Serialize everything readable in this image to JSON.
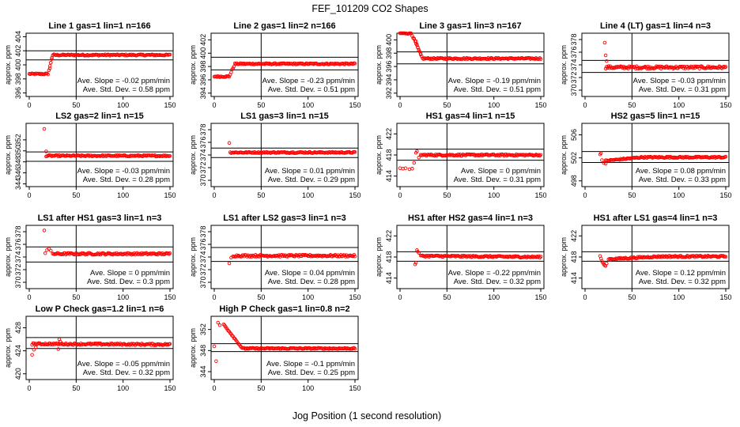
{
  "title": "FEF_101209  CO2 Shapes",
  "xlabel": "Jog Position (1 second resolution)",
  "chart_data": [
    {
      "type": "scatter",
      "title": "Line 1 gas=1 lin=1 n=166",
      "ylabel": "approx. ppm",
      "xlim": [
        0,
        150
      ],
      "ylim": [
        395.5,
        404.5
      ],
      "yticks": [
        396,
        398,
        400,
        402,
        404
      ],
      "xticks": [
        0,
        50,
        100,
        150
      ],
      "hlines": [
        400.7,
        402.0
      ],
      "vline": 50,
      "slope_text": "Ave. Slope = -0.02  ppm/min",
      "sd_text": "Ave. Std. Dev. = 0.58  ppm",
      "shape": {
        "kind": "rise",
        "x0": 0,
        "x1": 150,
        "y_start": 398.7,
        "y_end": 401.4,
        "t0": 20,
        "t1": 25,
        "noise": 0.1,
        "ramp_pts": [
          [
            22,
            399.5
          ],
          [
            23,
            400.3
          ],
          [
            24,
            401.0
          ]
        ]
      }
    },
    {
      "type": "scatter",
      "title": "Line 2 gas=1 lin=2 n=166",
      "ylabel": "approx. ppm",
      "xlim": [
        0,
        150
      ],
      "ylim": [
        393.5,
        403
      ],
      "yticks": [
        394,
        396,
        398,
        400,
        402
      ],
      "xticks": [
        0,
        50,
        100,
        150
      ],
      "hlines": [
        397.5,
        399.4
      ],
      "vline": 50,
      "slope_text": "Ave. Slope = -0.23  ppm/min",
      "sd_text": "Ave. Std. Dev. = 0.51  ppm",
      "shape": {
        "kind": "rise",
        "x0": 0,
        "x1": 150,
        "y_start": 396.5,
        "y_end": 398.4,
        "t0": 16,
        "t1": 22,
        "noise": 0.1,
        "ramp_pts": []
      }
    },
    {
      "type": "scatter",
      "title": "Line 3 gas=1 lin=3 n=167",
      "ylabel": "approx. ppm",
      "xlim": [
        0,
        150
      ],
      "ylim": [
        391.5,
        401
      ],
      "yticks": [
        392,
        394,
        396,
        398,
        400
      ],
      "xticks": [
        0,
        50,
        100,
        150
      ],
      "hlines": [
        396.4,
        398.2
      ],
      "vline": 50,
      "slope_text": "Ave. Slope = -0.19  ppm/min",
      "sd_text": "Ave. Std. Dev. = 0.51  ppm",
      "shape": {
        "kind": "fall",
        "x0": 0,
        "x1": 150,
        "y_start": 401.0,
        "y_end": 397.2,
        "t0": 12,
        "t1": 24,
        "noise": 0.1,
        "ramp_pts": [
          [
            15,
            400.2
          ],
          [
            17,
            399.8
          ],
          [
            18,
            399.3
          ],
          [
            19,
            398.9
          ],
          [
            20,
            398.4
          ],
          [
            22,
            397.8
          ]
        ]
      }
    },
    {
      "type": "scatter",
      "title": "Line 4 (LT) gas=1 lin=4 n=3",
      "ylabel": "approx. ppm",
      "xlim": [
        0,
        150
      ],
      "ylim": [
        369,
        379
      ],
      "yticks": [
        370,
        372,
        374,
        376,
        378
      ],
      "xticks": [
        0,
        50,
        100,
        150
      ],
      "hlines": [
        372.8,
        374.7
      ],
      "vline": 50,
      "slope_text": "Ave. Slope = -0.03  ppm/min",
      "sd_text": "Ave. Std. Dev. = 0.31  ppm",
      "shape": {
        "kind": "flat",
        "x0": 22,
        "x1": 150,
        "y_start": 373.6,
        "y_end": 373.6,
        "t0": 0,
        "t1": 0,
        "noise": 0.2,
        "ramp_pts": [
          [
            21,
            377.5
          ],
          [
            22,
            375.5
          ],
          [
            23,
            374.6
          ],
          [
            25,
            373.8
          ]
        ]
      }
    },
    {
      "type": "scatter",
      "title": "LS2 gas=2 lin=1 n=15",
      "ylabel": "approx. ppm",
      "xlim": [
        0,
        150
      ],
      "ylim": [
        343.5,
        355
      ],
      "yticks": [
        344,
        346,
        348,
        350,
        352
      ],
      "xticks": [
        0,
        50,
        100,
        150
      ],
      "hlines": [
        348.1,
        349.8
      ],
      "vline": 50,
      "slope_text": "Ave. Slope = -0.03  ppm/min",
      "sd_text": "Ave. Std. Dev. = 0.28  ppm",
      "shape": {
        "kind": "flat",
        "x0": 18,
        "x1": 150,
        "y_start": 349.1,
        "y_end": 349.1,
        "t0": 0,
        "t1": 0,
        "noise": 0.12,
        "ramp_pts": [
          [
            16,
            354.0
          ],
          [
            18,
            349.9
          ]
        ]
      }
    },
    {
      "type": "scatter",
      "title": "LS1 gas=3 lin=1 n=15",
      "ylabel": "approx. ppm",
      "xlim": [
        0,
        150
      ],
      "ylim": [
        369,
        379
      ],
      "yticks": [
        370,
        372,
        374,
        376,
        378
      ],
      "xticks": [
        0,
        50,
        100,
        150
      ],
      "hlines": [
        373.6,
        375.1
      ],
      "vline": 50,
      "slope_text": "Ave. Slope = 0.01  ppm/min",
      "sd_text": "Ave. Std. Dev. = 0.29  ppm",
      "shape": {
        "kind": "flat",
        "x0": 17,
        "x1": 150,
        "y_start": 374.4,
        "y_end": 374.4,
        "t0": 0,
        "t1": 0,
        "noise": 0.1,
        "ramp_pts": [
          [
            16,
            375.9
          ]
        ]
      }
    },
    {
      "type": "scatter",
      "title": "HS1 gas=4 lin=1 n=15",
      "ylabel": "approx. ppm",
      "xlim": [
        0,
        150
      ],
      "ylim": [
        412,
        424
      ],
      "yticks": [
        414,
        418,
        422
      ],
      "xticks": [
        0,
        50,
        100,
        150
      ],
      "hlines": [
        417.0,
        419.1
      ],
      "vline": 50,
      "slope_text": "Ave. Slope = 0  ppm/min",
      "sd_text": "Ave. Std. Dev. = 0.31  ppm",
      "shape": {
        "kind": "flat",
        "x0": 22,
        "x1": 150,
        "y_start": 418.0,
        "y_end": 418.0,
        "t0": 0,
        "t1": 0,
        "noise": 0.15,
        "ramp_pts": [
          [
            0,
            415.5
          ],
          [
            3,
            415.4
          ],
          [
            6,
            415.5
          ],
          [
            10,
            415.3
          ],
          [
            13,
            415.4
          ],
          [
            15,
            416.5
          ],
          [
            17,
            418.4
          ],
          [
            18,
            418.7
          ],
          [
            20,
            417.5
          ]
        ]
      }
    },
    {
      "type": "scatter",
      "title": "HS2 gas=5 lin=1 n=15",
      "ylabel": "approx. ppm",
      "xlim": [
        0,
        150
      ],
      "ylim": [
        497,
        508
      ],
      "yticks": [
        498,
        502,
        506
      ],
      "xticks": [
        0,
        50,
        100,
        150
      ],
      "hlines": [
        501.2,
        503.1
      ],
      "vline": 50,
      "slope_text": "Ave. Slope = 0.08  ppm/min",
      "sd_text": "Ave. Std. Dev. = 0.33  ppm",
      "shape": {
        "kind": "rise",
        "x0": 22,
        "x1": 150,
        "y_start": 501.5,
        "y_end": 502.1,
        "t0": 22,
        "t1": 60,
        "noise": 0.12,
        "ramp_pts": [
          [
            16,
            502.6
          ],
          [
            17,
            502.8
          ],
          [
            18,
            501.6
          ],
          [
            20,
            501.1
          ],
          [
            22,
            501.0
          ]
        ]
      }
    },
    {
      "type": "scatter",
      "title": "LS1 after HS1 gas=3 lin=1 n=3",
      "ylabel": "approx. ppm",
      "xlim": [
        0,
        150
      ],
      "ylim": [
        369,
        379
      ],
      "yticks": [
        370,
        372,
        374,
        376,
        378
      ],
      "xticks": [
        0,
        50,
        100,
        150
      ],
      "hlines": [
        373.2,
        375.6
      ],
      "vline": 50,
      "slope_text": "Ave. Slope = 0  ppm/min",
      "sd_text": "Ave. Std. Dev. = 0.3  ppm",
      "shape": {
        "kind": "flat",
        "x0": 25,
        "x1": 150,
        "y_start": 374.5,
        "y_end": 374.5,
        "t0": 0,
        "t1": 0,
        "noise": 0.15,
        "ramp_pts": [
          [
            16,
            378.2
          ],
          [
            17,
            374.6
          ],
          [
            19,
            375.1
          ],
          [
            21,
            375.3
          ],
          [
            23,
            375.0
          ]
        ]
      }
    },
    {
      "type": "scatter",
      "title": "LS1 after LS2 gas=3 lin=1 n=3",
      "ylabel": "approx. ppm",
      "xlim": [
        0,
        150
      ],
      "ylim": [
        369,
        379
      ],
      "yticks": [
        370,
        372,
        374,
        376,
        378
      ],
      "xticks": [
        0,
        50,
        100,
        150
      ],
      "hlines": [
        373.3,
        375.5
      ],
      "vline": 50,
      "slope_text": "Ave. Slope = 0.04  ppm/min",
      "sd_text": "Ave. Std. Dev. = 0.28  ppm",
      "shape": {
        "kind": "flat",
        "x0": 20,
        "x1": 150,
        "y_start": 374.2,
        "y_end": 374.2,
        "t0": 0,
        "t1": 0,
        "noise": 0.15,
        "ramp_pts": [
          [
            16,
            373.0
          ],
          [
            18,
            373.9
          ]
        ]
      }
    },
    {
      "type": "scatter",
      "title": "HS1 after HS2 gas=4 lin=1 n=3",
      "ylabel": "approx. ppm",
      "xlim": [
        0,
        150
      ],
      "ylim": [
        412,
        424
      ],
      "yticks": [
        414,
        418,
        422
      ],
      "xticks": [
        0,
        50,
        100,
        150
      ],
      "hlines": [
        417.2,
        419.0
      ],
      "vline": 50,
      "slope_text": "Ave. Slope = -0.22  ppm/min",
      "sd_text": "Ave. Std. Dev. = 0.32  ppm",
      "shape": {
        "kind": "flat",
        "x0": 22,
        "x1": 150,
        "y_start": 418.2,
        "y_end": 418.0,
        "t0": 0,
        "t1": 0,
        "noise": 0.15,
        "ramp_pts": [
          [
            16,
            416.6
          ],
          [
            17,
            416.9
          ],
          [
            18,
            419.3
          ],
          [
            19,
            419.0
          ],
          [
            20,
            418.8
          ]
        ]
      }
    },
    {
      "type": "scatter",
      "title": "HS1 after LS1 gas=4 lin=1 n=3",
      "ylabel": "approx. ppm",
      "xlim": [
        0,
        150
      ],
      "ylim": [
        412,
        424
      ],
      "yticks": [
        414,
        418,
        422
      ],
      "xticks": [
        0,
        50,
        100,
        150
      ],
      "hlines": [
        417.2,
        419.0
      ],
      "vline": 50,
      "slope_text": "Ave. Slope = 0.12  ppm/min",
      "sd_text": "Ave. Std. Dev. = 0.32  ppm",
      "shape": {
        "kind": "rise",
        "x0": 25,
        "x1": 150,
        "y_start": 417.6,
        "y_end": 418.1,
        "t0": 25,
        "t1": 80,
        "noise": 0.15,
        "ramp_pts": [
          [
            16,
            418.2
          ],
          [
            17,
            417.7
          ],
          [
            18,
            417.2
          ],
          [
            19,
            416.9
          ],
          [
            20,
            416.6
          ],
          [
            21,
            416.4
          ],
          [
            22,
            416.3
          ],
          [
            23,
            416.8
          ]
        ]
      }
    },
    {
      "type": "scatter",
      "title": "Low P Check gas=1.2 lin=1 n=6",
      "ylabel": "approx. ppm",
      "xlim": [
        0,
        150
      ],
      "ylim": [
        419,
        430
      ],
      "yticks": [
        420,
        424,
        428
      ],
      "xticks": [
        0,
        50,
        100,
        150
      ],
      "hlines": [
        424.4,
        426.3
      ],
      "vline": 50,
      "slope_text": "Ave. Slope = -0.05  ppm/min",
      "sd_text": "Ave. Std. Dev. = 0.32  ppm",
      "shape": {
        "kind": "flat",
        "x0": 3,
        "x1": 150,
        "y_start": 425.2,
        "y_end": 425.1,
        "t0": 0,
        "t1": 0,
        "noise": 0.15,
        "ramp_pts": [
          [
            3,
            423.3
          ],
          [
            5,
            424.2
          ],
          [
            7,
            424.6
          ],
          [
            31,
            424.3
          ],
          [
            32,
            426.0
          ],
          [
            33,
            425.6
          ]
        ]
      }
    },
    {
      "type": "scatter",
      "title": "High P Check gas=1 lin=0.8 n=2",
      "ylabel": "approx. ppm",
      "xlim": [
        0,
        150
      ],
      "ylim": [
        342.5,
        354.5
      ],
      "yticks": [
        344,
        348,
        352
      ],
      "xticks": [
        0,
        50,
        100,
        150
      ],
      "hlines": [
        347.8,
        349.3
      ],
      "vline": 50,
      "slope_text": "Ave. Slope = -0.1  ppm/min",
      "sd_text": "Ave. Std. Dev. = 0.25  ppm",
      "shape": {
        "kind": "fall",
        "x0": 10,
        "x1": 150,
        "y_start": 353.0,
        "y_end": 348.4,
        "t0": 10,
        "t1": 30,
        "noise": 0.12,
        "ramp_pts": [
          [
            0,
            348.8
          ],
          [
            2,
            346.0
          ],
          [
            4,
            353.3
          ],
          [
            6,
            352.8
          ]
        ]
      }
    }
  ]
}
